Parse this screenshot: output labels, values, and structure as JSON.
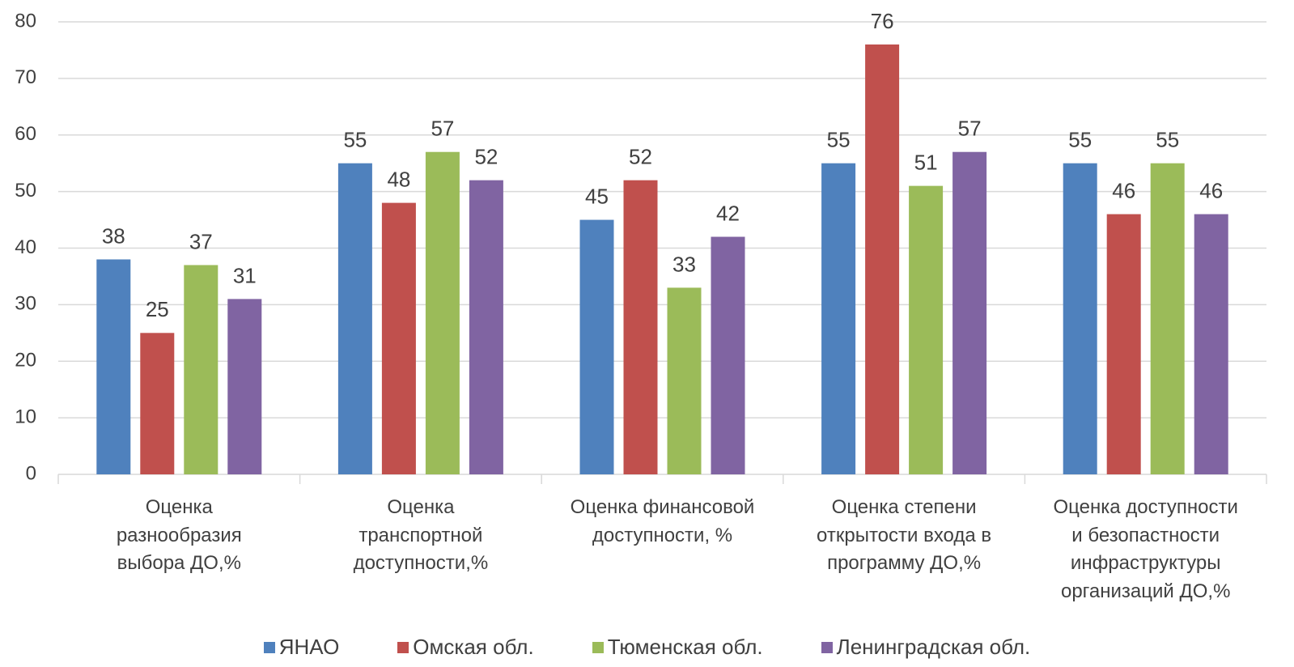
{
  "chart_data": {
    "type": "bar",
    "categories": [
      "Оценка\nразнообразия\nвыбора ДО,%",
      "Оценка\nтранспортной\nдоступности,%",
      "Оценка финансовой\nдоступности, %",
      "Оценка степени\nоткрытости входа в\nпрограмму ДО,%",
      "Оценка доступности\nи безопастности\nинфраструктуры\nорганизаций ДО,%"
    ],
    "series": [
      {
        "name": "ЯНАО",
        "color": "#4f81bd",
        "values": [
          38,
          55,
          45,
          55,
          55
        ]
      },
      {
        "name": "Омская обл.",
        "color": "#c0504d",
        "values": [
          25,
          48,
          52,
          76,
          46
        ]
      },
      {
        "name": "Тюменская обл.",
        "color": "#9bbb59",
        "values": [
          37,
          57,
          33,
          51,
          55
        ]
      },
      {
        "name": "Ленинградская обл.",
        "color": "#8064a2",
        "values": [
          31,
          52,
          42,
          57,
          46
        ]
      }
    ],
    "ylim": [
      0,
      80
    ],
    "yticks": [
      0,
      10,
      20,
      30,
      40,
      50,
      60,
      70,
      80
    ],
    "grid": true,
    "legend": "bottom"
  }
}
